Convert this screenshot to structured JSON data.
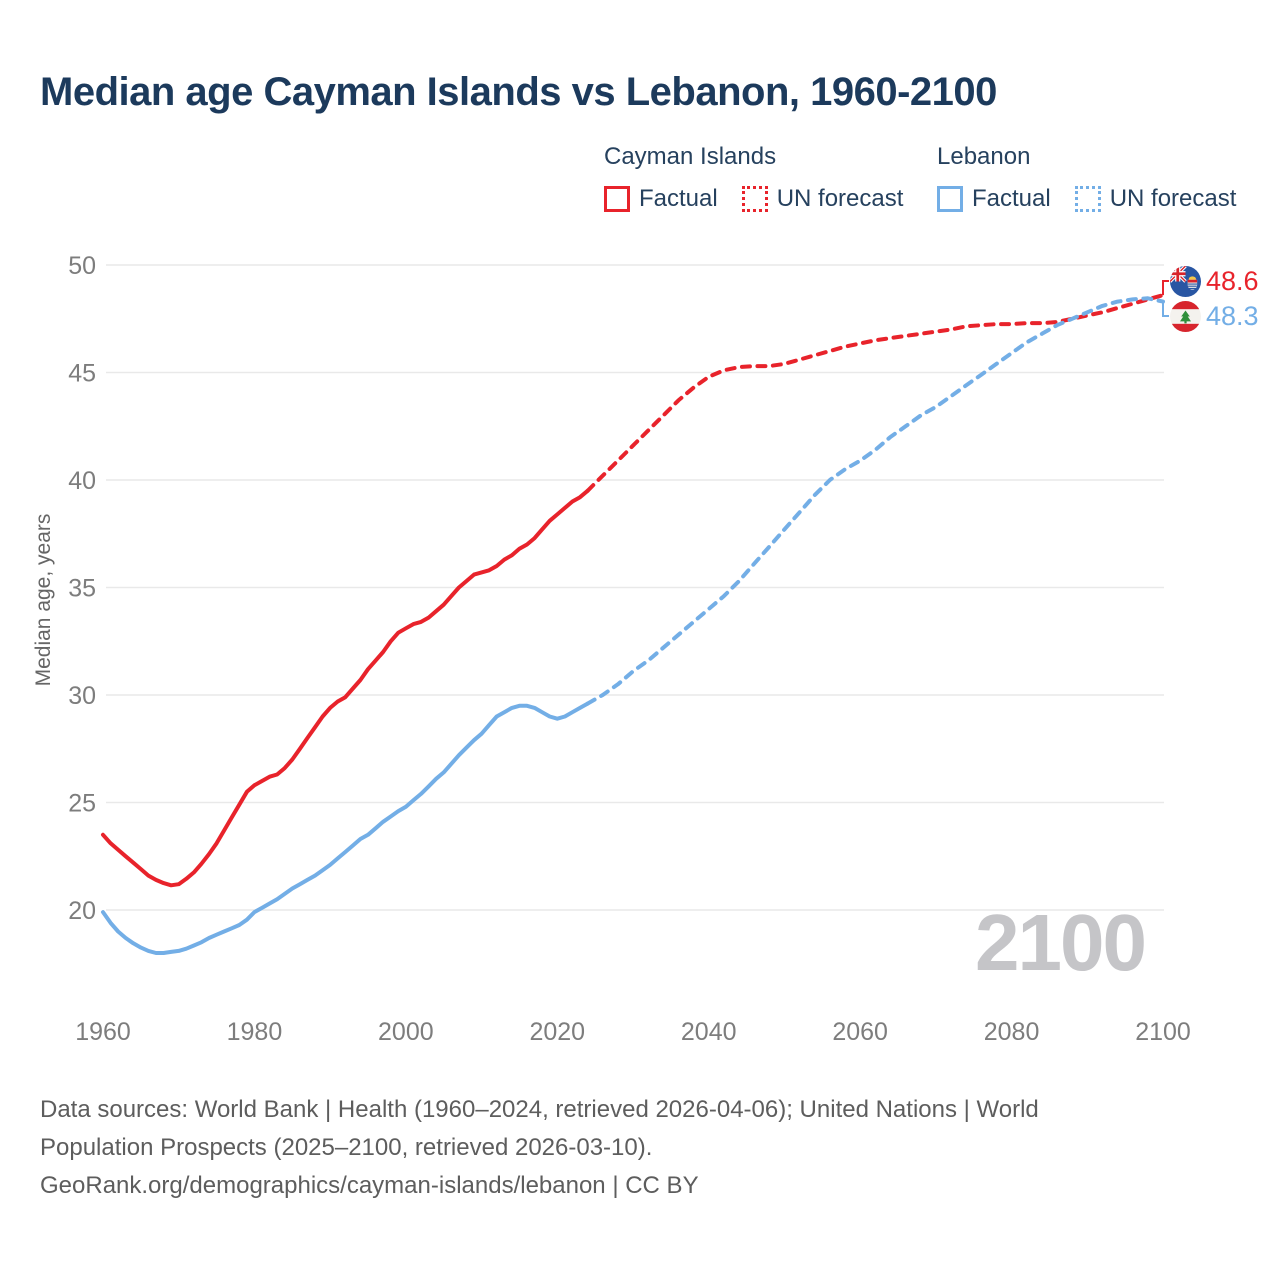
{
  "title": "Median age Cayman Islands vs Lebanon, 1960-2100",
  "watermark": "2100",
  "colors": {
    "cayman": "#e8232b",
    "lebanon": "#73aee6",
    "title_text": "#1c3a5c",
    "tick_text": "#7d7d7d",
    "gridline": "#e9e9e9",
    "footer_text": "#5d5d5d",
    "watermark_text": "#c5c5c8"
  },
  "legend": {
    "cayman": {
      "name": "Cayman Islands",
      "factual_label": "Factual",
      "forecast_label": "UN forecast"
    },
    "lebanon": {
      "name": "Lebanon",
      "factual_label": "Factual",
      "forecast_label": "UN forecast"
    }
  },
  "end_labels": {
    "cayman": {
      "value": "48.6",
      "flag": "cayman-islands-flag"
    },
    "lebanon": {
      "value": "48.3",
      "flag": "lebanon-flag"
    }
  },
  "footer": {
    "line1": "Data sources: World Bank | Health (1960–2024, retrieved 2026-04-06); United Nations | World",
    "line2": "Population Prospects (2025–2100, retrieved 2026-03-10).",
    "line3": "GeoRank.org/demographics/cayman-islands/lebanon | CC BY"
  },
  "chart_data": {
    "type": "line",
    "title": "Median age Cayman Islands vs Lebanon, 1960-2100",
    "xlabel": "",
    "ylabel": "Median age, years",
    "xlim": [
      1960,
      2100
    ],
    "ylim": [
      20,
      50
    ],
    "x_ticks": [
      1960,
      1980,
      2000,
      2020,
      2040,
      2060,
      2080,
      2100
    ],
    "y_ticks": [
      20,
      25,
      30,
      35,
      40,
      45,
      50
    ],
    "grid": "horizontal-only",
    "legend_position": "top-right",
    "series": [
      {
        "name": "Cayman Islands — Factual",
        "color": "#e8232b",
        "dash": "solid",
        "points": [
          [
            1960,
            23.5
          ],
          [
            1961,
            23.1
          ],
          [
            1962,
            22.8
          ],
          [
            1963,
            22.5
          ],
          [
            1964,
            22.2
          ],
          [
            1965,
            21.9
          ],
          [
            1966,
            21.6
          ],
          [
            1967,
            21.4
          ],
          [
            1968,
            21.25
          ],
          [
            1969,
            21.15
          ],
          [
            1970,
            21.2
          ],
          [
            1971,
            21.45
          ],
          [
            1972,
            21.75
          ],
          [
            1973,
            22.15
          ],
          [
            1974,
            22.6
          ],
          [
            1975,
            23.1
          ],
          [
            1976,
            23.7
          ],
          [
            1977,
            24.3
          ],
          [
            1978,
            24.9
          ],
          [
            1979,
            25.5
          ],
          [
            1980,
            25.8
          ],
          [
            1981,
            26.0
          ],
          [
            1982,
            26.2
          ],
          [
            1983,
            26.3
          ],
          [
            1984,
            26.6
          ],
          [
            1985,
            27.0
          ],
          [
            1986,
            27.5
          ],
          [
            1987,
            28.0
          ],
          [
            1988,
            28.5
          ],
          [
            1989,
            29.0
          ],
          [
            1990,
            29.4
          ],
          [
            1991,
            29.7
          ],
          [
            1992,
            29.9
          ],
          [
            1993,
            30.3
          ],
          [
            1994,
            30.7
          ],
          [
            1995,
            31.2
          ],
          [
            1996,
            31.6
          ],
          [
            1997,
            32.0
          ],
          [
            1998,
            32.5
          ],
          [
            1999,
            32.9
          ],
          [
            2000,
            33.1
          ],
          [
            2001,
            33.3
          ],
          [
            2002,
            33.4
          ],
          [
            2003,
            33.6
          ],
          [
            2004,
            33.9
          ],
          [
            2005,
            34.2
          ],
          [
            2006,
            34.6
          ],
          [
            2007,
            35.0
          ],
          [
            2008,
            35.3
          ],
          [
            2009,
            35.6
          ],
          [
            2010,
            35.7
          ],
          [
            2011,
            35.8
          ],
          [
            2012,
            36.0
          ],
          [
            2013,
            36.3
          ],
          [
            2014,
            36.5
          ],
          [
            2015,
            36.8
          ],
          [
            2016,
            37.0
          ],
          [
            2017,
            37.3
          ],
          [
            2018,
            37.7
          ],
          [
            2019,
            38.1
          ],
          [
            2020,
            38.4
          ],
          [
            2021,
            38.7
          ],
          [
            2022,
            39.0
          ],
          [
            2023,
            39.2
          ],
          [
            2024,
            39.5
          ]
        ]
      },
      {
        "name": "Cayman Islands — UN forecast",
        "color": "#e8232b",
        "dash": "dashed",
        "points": [
          [
            2024,
            39.5
          ],
          [
            2026,
            40.2
          ],
          [
            2028,
            40.9
          ],
          [
            2030,
            41.6
          ],
          [
            2032,
            42.3
          ],
          [
            2034,
            43.0
          ],
          [
            2036,
            43.7
          ],
          [
            2038,
            44.3
          ],
          [
            2040,
            44.8
          ],
          [
            2042,
            45.1
          ],
          [
            2044,
            45.25
          ],
          [
            2046,
            45.3
          ],
          [
            2048,
            45.3
          ],
          [
            2050,
            45.4
          ],
          [
            2052,
            45.6
          ],
          [
            2054,
            45.8
          ],
          [
            2056,
            46.0
          ],
          [
            2058,
            46.2
          ],
          [
            2060,
            46.35
          ],
          [
            2062,
            46.5
          ],
          [
            2064,
            46.6
          ],
          [
            2066,
            46.7
          ],
          [
            2068,
            46.8
          ],
          [
            2070,
            46.9
          ],
          [
            2072,
            47.0
          ],
          [
            2074,
            47.15
          ],
          [
            2076,
            47.2
          ],
          [
            2078,
            47.25
          ],
          [
            2080,
            47.25
          ],
          [
            2082,
            47.3
          ],
          [
            2084,
            47.3
          ],
          [
            2086,
            47.35
          ],
          [
            2088,
            47.5
          ],
          [
            2090,
            47.65
          ],
          [
            2092,
            47.8
          ],
          [
            2094,
            48.0
          ],
          [
            2096,
            48.2
          ],
          [
            2098,
            48.4
          ],
          [
            2100,
            48.6
          ]
        ]
      },
      {
        "name": "Lebanon — Factual",
        "color": "#73aee6",
        "dash": "solid",
        "points": [
          [
            1960,
            19.9
          ],
          [
            1961,
            19.4
          ],
          [
            1962,
            19.0
          ],
          [
            1963,
            18.7
          ],
          [
            1964,
            18.45
          ],
          [
            1965,
            18.25
          ],
          [
            1966,
            18.1
          ],
          [
            1967,
            18.0
          ],
          [
            1968,
            18.0
          ],
          [
            1969,
            18.05
          ],
          [
            1970,
            18.1
          ],
          [
            1971,
            18.2
          ],
          [
            1972,
            18.35
          ],
          [
            1973,
            18.5
          ],
          [
            1974,
            18.7
          ],
          [
            1975,
            18.85
          ],
          [
            1976,
            19.0
          ],
          [
            1977,
            19.15
          ],
          [
            1978,
            19.3
          ],
          [
            1979,
            19.55
          ],
          [
            1980,
            19.9
          ],
          [
            1981,
            20.1
          ],
          [
            1982,
            20.3
          ],
          [
            1983,
            20.5
          ],
          [
            1984,
            20.75
          ],
          [
            1985,
            21.0
          ],
          [
            1986,
            21.2
          ],
          [
            1987,
            21.4
          ],
          [
            1988,
            21.6
          ],
          [
            1989,
            21.85
          ],
          [
            1990,
            22.1
          ],
          [
            1991,
            22.4
          ],
          [
            1992,
            22.7
          ],
          [
            1993,
            23.0
          ],
          [
            1994,
            23.3
          ],
          [
            1995,
            23.5
          ],
          [
            1996,
            23.8
          ],
          [
            1997,
            24.1
          ],
          [
            1998,
            24.35
          ],
          [
            1999,
            24.6
          ],
          [
            2000,
            24.8
          ],
          [
            2001,
            25.1
          ],
          [
            2002,
            25.4
          ],
          [
            2003,
            25.75
          ],
          [
            2004,
            26.1
          ],
          [
            2005,
            26.4
          ],
          [
            2006,
            26.8
          ],
          [
            2007,
            27.2
          ],
          [
            2008,
            27.55
          ],
          [
            2009,
            27.9
          ],
          [
            2010,
            28.2
          ],
          [
            2011,
            28.6
          ],
          [
            2012,
            29.0
          ],
          [
            2013,
            29.2
          ],
          [
            2014,
            29.4
          ],
          [
            2015,
            29.5
          ],
          [
            2016,
            29.5
          ],
          [
            2017,
            29.4
          ],
          [
            2018,
            29.2
          ],
          [
            2019,
            29.0
          ],
          [
            2020,
            28.9
          ],
          [
            2021,
            29.0
          ],
          [
            2022,
            29.2
          ],
          [
            2023,
            29.4
          ],
          [
            2024,
            29.6
          ]
        ]
      },
      {
        "name": "Lebanon — UN forecast",
        "color": "#73aee6",
        "dash": "dashed",
        "points": [
          [
            2024,
            29.6
          ],
          [
            2026,
            30.0
          ],
          [
            2028,
            30.5
          ],
          [
            2030,
            31.1
          ],
          [
            2032,
            31.6
          ],
          [
            2034,
            32.2
          ],
          [
            2036,
            32.8
          ],
          [
            2038,
            33.4
          ],
          [
            2040,
            34.0
          ],
          [
            2042,
            34.6
          ],
          [
            2044,
            35.3
          ],
          [
            2046,
            36.1
          ],
          [
            2048,
            36.9
          ],
          [
            2050,
            37.7
          ],
          [
            2052,
            38.5
          ],
          [
            2054,
            39.3
          ],
          [
            2056,
            40.0
          ],
          [
            2058,
            40.5
          ],
          [
            2060,
            40.9
          ],
          [
            2062,
            41.4
          ],
          [
            2064,
            42.0
          ],
          [
            2066,
            42.5
          ],
          [
            2068,
            43.0
          ],
          [
            2070,
            43.4
          ],
          [
            2072,
            43.9
          ],
          [
            2074,
            44.4
          ],
          [
            2076,
            44.9
          ],
          [
            2078,
            45.4
          ],
          [
            2080,
            45.9
          ],
          [
            2082,
            46.4
          ],
          [
            2084,
            46.8
          ],
          [
            2086,
            47.2
          ],
          [
            2088,
            47.5
          ],
          [
            2090,
            47.8
          ],
          [
            2092,
            48.1
          ],
          [
            2094,
            48.3
          ],
          [
            2096,
            48.4
          ],
          [
            2098,
            48.45
          ],
          [
            2100,
            48.3
          ]
        ]
      }
    ]
  }
}
